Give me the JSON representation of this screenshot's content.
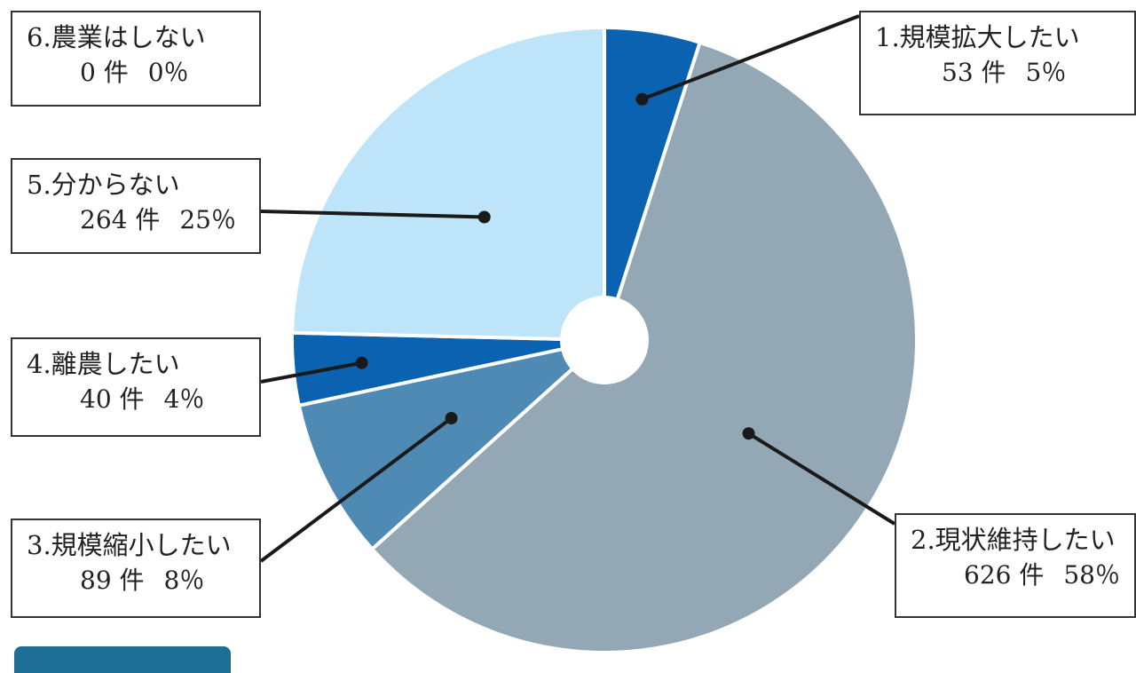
{
  "chart_data": {
    "type": "pie",
    "donut_hole": true,
    "slices": [
      {
        "label": "1.規模拡大したい",
        "count_text": "53 件",
        "percent_text": "5％",
        "value": 53,
        "color": "#0a62b0"
      },
      {
        "label": "2.現状維持したい",
        "count_text": "626 件",
        "percent_text": "58％",
        "value": 626,
        "color": "#93a8b4"
      },
      {
        "label": "3.規模縮小したい",
        "count_text": "89 件",
        "percent_text": "8％",
        "value": 89,
        "color": "#4f8ab4"
      },
      {
        "label": "4.離農したい",
        "count_text": "40 件",
        "percent_text": "4％",
        "value": 40,
        "color": "#0a62b0"
      },
      {
        "label": "5.分からない",
        "count_text": "264 件",
        "percent_text": "25％",
        "value": 264,
        "color": "#bde4f8"
      },
      {
        "label": "6.農業はしない",
        "count_text": "0 件",
        "percent_text": "0％",
        "value": 0,
        "color": "#bde4f8"
      }
    ],
    "legend": "callout boxes"
  },
  "colors": {
    "box_border": "#333333",
    "leader_line": "#1a1a1a",
    "bottom_tab": "#1e6e96"
  }
}
